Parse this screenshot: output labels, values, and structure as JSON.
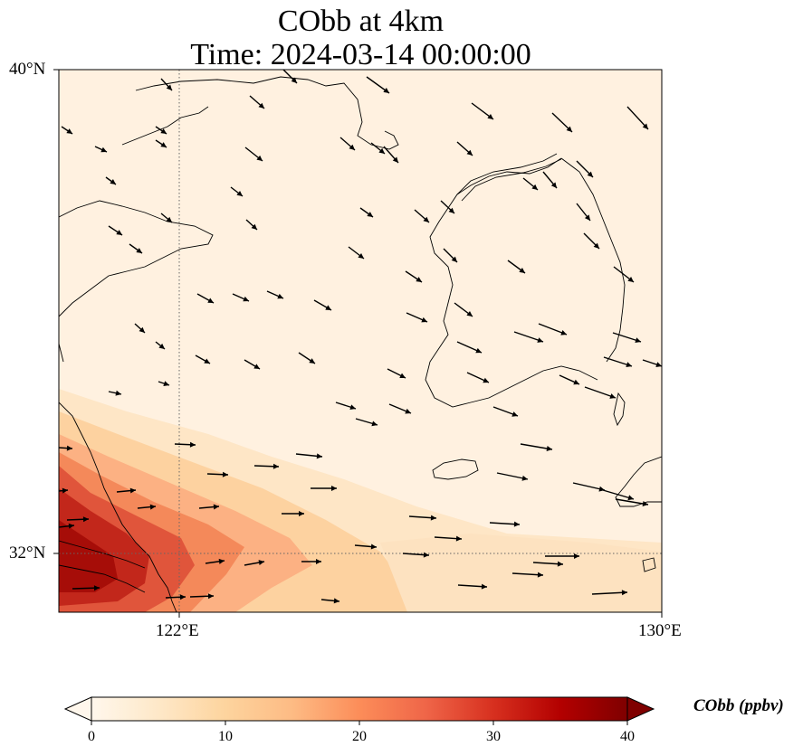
{
  "title": {
    "line1": "CObb at 4km",
    "line2": "Time: 2024-03-14 00:00:00"
  },
  "map": {
    "lon_range": [
      121.0,
      130.0
    ],
    "lat_range": [
      31.5,
      40.0
    ],
    "gridlines": {
      "lon": [
        122,
        130
      ],
      "lat": [
        32,
        40
      ],
      "style": "dotted"
    },
    "tick_labels": {
      "lon": [
        "122°E",
        "130°E"
      ],
      "lat": [
        "40°N",
        "32°N"
      ]
    },
    "field": "CObb concentration (ppbv) shaded, wind vectors overlaid",
    "high_concentration_region": "Yangtze River Delta / East China coast (southwest corner)"
  },
  "colorbar": {
    "label": "CObb (ppbv)",
    "min": 0,
    "max": 40,
    "ticks": [
      "0",
      "10",
      "20",
      "30",
      "40"
    ],
    "colormap": [
      "#fff7ec",
      "#fee8c8",
      "#fdd49e",
      "#fdbb84",
      "#fc8d59",
      "#ef6548",
      "#d7301f",
      "#b30000",
      "#7f0000"
    ],
    "extend": "both"
  }
}
